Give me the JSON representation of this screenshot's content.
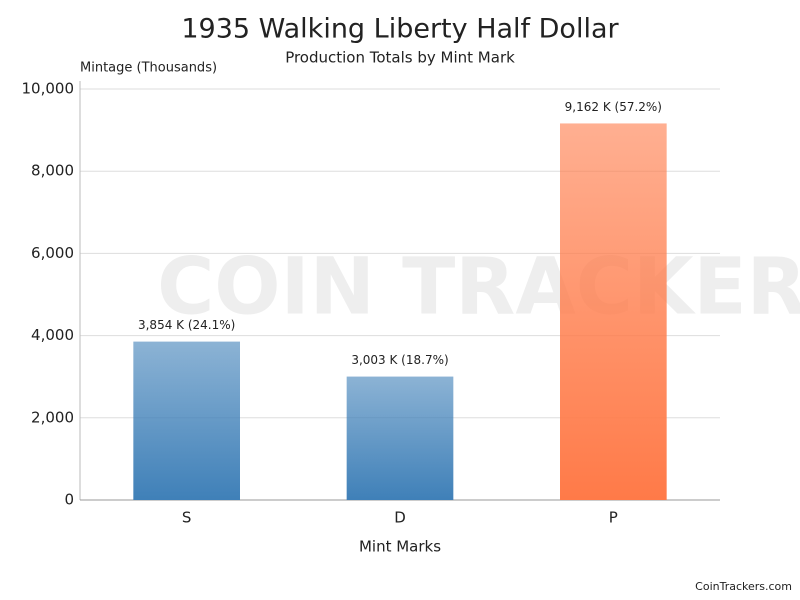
{
  "chart_data": {
    "type": "bar",
    "title": "1935 Walking Liberty Half Dollar",
    "subtitle": "Production Totals by Mint Mark",
    "y_label": "Mintage (Thousands)",
    "x_label": "Mint Marks",
    "watermark": "COIN TRACKERS",
    "footer": "CoinTrackers.com",
    "categories": [
      "S",
      "D",
      "P"
    ],
    "values": [
      3854,
      3003,
      9162
    ],
    "value_labels": [
      "3,854 K (24.1%)",
      "3,003 K (18.7%)",
      "9,162 K (57.2%)"
    ],
    "colors": [
      "#3f80b8",
      "#3f80b8",
      "#ff7a48"
    ],
    "ylim": [
      0,
      10000
    ],
    "yticks": [
      0,
      {
        "value": 2000,
        "label": "2,000"
      },
      {
        "value": 4000,
        "label": "4,000"
      },
      {
        "value": 6000,
        "label": "6,000"
      },
      {
        "value": 8000,
        "label": "8,000"
      },
      {
        "value": 10000,
        "label": "10,000"
      }
    ],
    "grid": true
  }
}
